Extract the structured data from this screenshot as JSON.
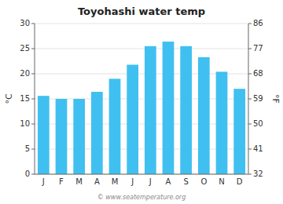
{
  "chart_data": {
    "type": "bar",
    "title": "Toyohashi water temp",
    "categories": [
      "J",
      "F",
      "M",
      "A",
      "M",
      "J",
      "J",
      "A",
      "S",
      "O",
      "N",
      "D"
    ],
    "values": [
      15.6,
      15.0,
      15.0,
      16.4,
      19.0,
      21.8,
      25.5,
      26.4,
      25.5,
      23.3,
      20.4,
      17.0
    ],
    "color": "#40c0f0",
    "ylabel": "°C",
    "y2label": "°F",
    "ylim": [
      0,
      30
    ],
    "yticks": [
      0,
      5,
      10,
      15,
      20,
      25,
      30
    ],
    "y2lim": [
      32,
      86
    ],
    "y2ticks": [
      32,
      41,
      50,
      59,
      68,
      77,
      86
    ],
    "grid": true,
    "annotations": [
      "© www.seatemperature.org"
    ]
  }
}
